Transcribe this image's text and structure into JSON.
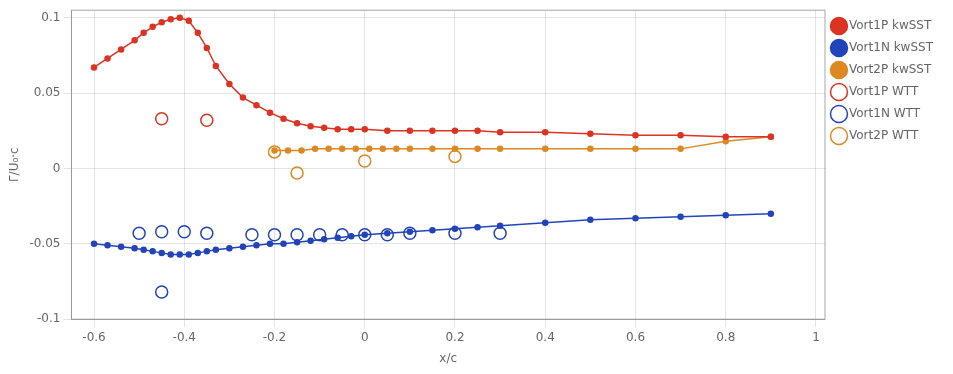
{
  "chart_data": {
    "type": "line",
    "xlabel": "x/c",
    "ylabel": "Γ/U₀·c",
    "xlim": [
      -0.65,
      1.02
    ],
    "ylim": [
      -0.1,
      0.105
    ],
    "xticks": [
      -0.6,
      -0.4,
      -0.2,
      0,
      0.2,
      0.4,
      0.6,
      0.8,
      1
    ],
    "yticks": [
      -0.1,
      -0.05,
      0,
      0.05,
      0.1
    ],
    "grid": true,
    "legend": "right",
    "series": [
      {
        "name": "Vort1P kwSST",
        "type": "line",
        "marker": "circle",
        "color": "#dd3322",
        "x": [
          -0.6,
          -0.57,
          -0.54,
          -0.51,
          -0.49,
          -0.47,
          -0.45,
          -0.43,
          -0.41,
          -0.39,
          -0.37,
          -0.35,
          -0.33,
          -0.3,
          -0.27,
          -0.24,
          -0.21,
          -0.18,
          -0.15,
          -0.12,
          -0.09,
          -0.06,
          -0.03,
          0.0,
          0.05,
          0.1,
          0.15,
          0.2,
          0.25,
          0.3,
          0.4,
          0.5,
          0.6,
          0.7,
          0.8,
          0.9
        ],
        "values": [
          0.067,
          0.073,
          0.079,
          0.085,
          0.09,
          0.094,
          0.097,
          0.099,
          0.1,
          0.098,
          0.09,
          0.08,
          0.068,
          0.056,
          0.047,
          0.042,
          0.037,
          0.033,
          0.03,
          0.028,
          0.027,
          0.026,
          0.026,
          0.026,
          0.025,
          0.025,
          0.025,
          0.025,
          0.025,
          0.024,
          0.024,
          0.023,
          0.022,
          0.022,
          0.021,
          0.021
        ]
      },
      {
        "name": "Vort1N kwSST",
        "type": "line",
        "marker": "circle",
        "color": "#2244bb",
        "x": [
          -0.6,
          -0.57,
          -0.54,
          -0.51,
          -0.49,
          -0.47,
          -0.45,
          -0.43,
          -0.41,
          -0.39,
          -0.37,
          -0.35,
          -0.33,
          -0.3,
          -0.27,
          -0.24,
          -0.21,
          -0.18,
          -0.15,
          -0.12,
          -0.09,
          -0.06,
          -0.03,
          0.0,
          0.05,
          0.1,
          0.15,
          0.2,
          0.25,
          0.3,
          0.4,
          0.5,
          0.6,
          0.7,
          0.8,
          0.9
        ],
        "values": [
          -0.05,
          -0.051,
          -0.052,
          -0.053,
          -0.054,
          -0.055,
          -0.056,
          -0.057,
          -0.057,
          -0.057,
          -0.056,
          -0.055,
          -0.054,
          -0.053,
          -0.052,
          -0.051,
          -0.05,
          -0.05,
          -0.049,
          -0.048,
          -0.047,
          -0.046,
          -0.045,
          -0.044,
          -0.043,
          -0.042,
          -0.041,
          -0.04,
          -0.039,
          -0.038,
          -0.036,
          -0.034,
          -0.033,
          -0.032,
          -0.031,
          -0.03
        ]
      },
      {
        "name": "Vort2P kwSST",
        "type": "line",
        "marker": "circle",
        "color": "#dd8822",
        "x": [
          -0.2,
          -0.17,
          -0.14,
          -0.11,
          -0.08,
          -0.05,
          -0.02,
          0.01,
          0.04,
          0.07,
          0.1,
          0.15,
          0.2,
          0.25,
          0.3,
          0.4,
          0.5,
          0.6,
          0.7,
          0.8,
          0.9
        ],
        "values": [
          0.012,
          0.012,
          0.012,
          0.013,
          0.013,
          0.013,
          0.013,
          0.013,
          0.013,
          0.013,
          0.013,
          0.013,
          0.013,
          0.013,
          0.013,
          0.013,
          0.013,
          0.013,
          0.013,
          0.018,
          0.021
        ]
      },
      {
        "name": "Vort1P WTT",
        "type": "scatter",
        "marker": "open_circle",
        "color": "#dd3322",
        "x": [
          -0.45,
          -0.35
        ],
        "values": [
          0.033,
          0.032
        ]
      },
      {
        "name": "Vort1N WTT",
        "type": "scatter",
        "marker": "open_circle",
        "color": "#2244bb",
        "x": [
          -0.5,
          -0.45,
          -0.4,
          -0.35,
          -0.25,
          -0.2,
          -0.15,
          -0.1,
          -0.05,
          0.0,
          0.05,
          0.1,
          0.2,
          0.3,
          -0.45
        ],
        "values": [
          -0.043,
          -0.042,
          -0.042,
          -0.043,
          -0.044,
          -0.044,
          -0.044,
          -0.044,
          -0.044,
          -0.044,
          -0.044,
          -0.043,
          -0.043,
          -0.043,
          -0.082
        ]
      },
      {
        "name": "Vort2P WTT",
        "type": "scatter",
        "marker": "open_circle",
        "color": "#dd8822",
        "x": [
          -0.2,
          -0.15,
          0.0,
          0.2
        ],
        "values": [
          0.011,
          -0.003,
          0.005,
          0.008
        ]
      }
    ]
  }
}
